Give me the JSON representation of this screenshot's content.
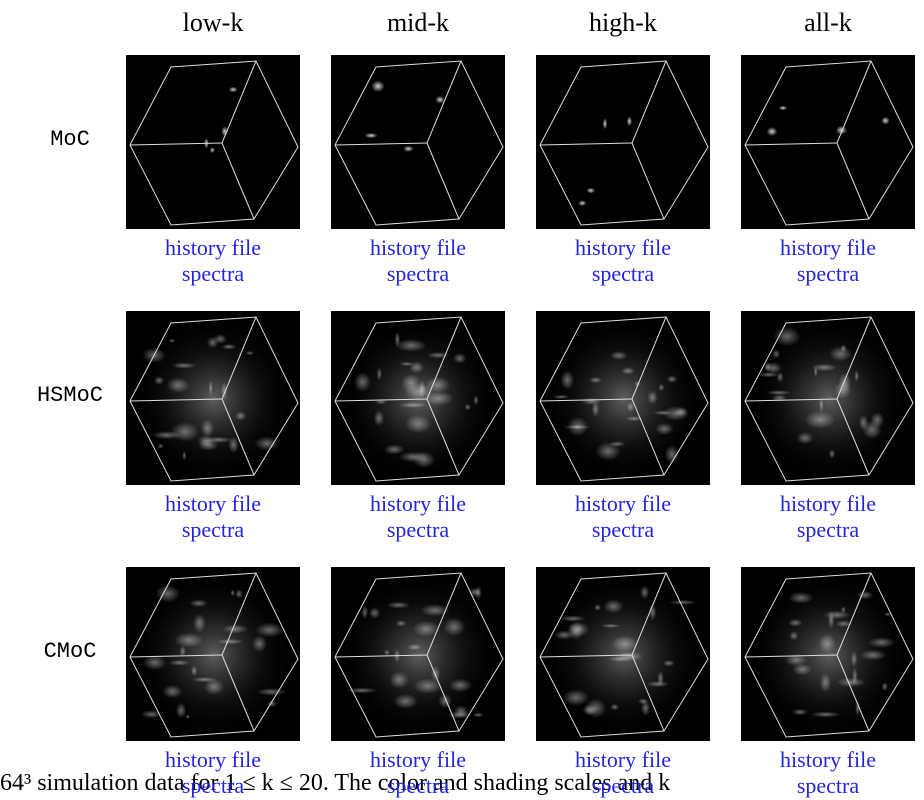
{
  "columns": [
    "low-k",
    "mid-k",
    "high-k",
    "all-k"
  ],
  "rows": [
    {
      "label": "MoC",
      "cells": [
        {
          "links": [
            "history file",
            "spectra"
          ]
        },
        {
          "links": [
            "history file",
            "spectra"
          ]
        },
        {
          "links": [
            "history file",
            "spectra"
          ]
        },
        {
          "links": [
            "history file",
            "spectra"
          ]
        }
      ]
    },
    {
      "label": "HSMoC",
      "cells": [
        {
          "links": [
            "history file",
            "spectra"
          ]
        },
        {
          "links": [
            "history file",
            "spectra"
          ]
        },
        {
          "links": [
            "history file",
            "spectra"
          ]
        },
        {
          "links": [
            "history file",
            "spectra"
          ]
        }
      ]
    },
    {
      "label": "CMoC",
      "cells": [
        {
          "links": [
            "history file",
            "spectra"
          ]
        },
        {
          "links": [
            "history file",
            "spectra"
          ]
        },
        {
          "links": [
            "history file",
            "spectra"
          ]
        },
        {
          "links": [
            "history file",
            "spectra"
          ]
        }
      ]
    }
  ],
  "caption": "64³ simulation data for 1 ≤ k ≤ 20. The color and shading scales and k"
}
